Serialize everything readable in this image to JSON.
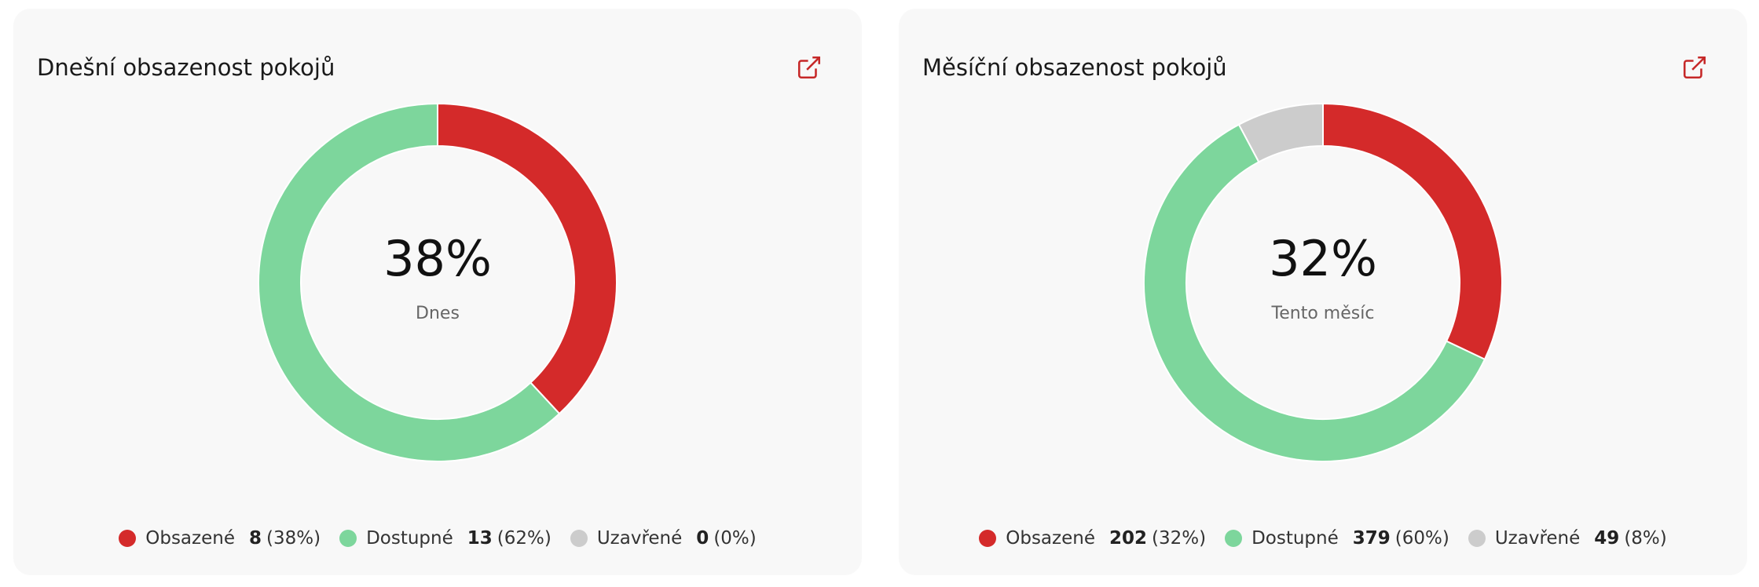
{
  "chart_data": [
    {
      "type": "donut",
      "title": "Dnešní obsazenost pokojů",
      "center_text": "38%",
      "center_subtitle": "Dnes",
      "categories": [
        "Obsazené",
        "Dostupné",
        "Uzavřené"
      ],
      "values": [
        8,
        13,
        0
      ],
      "shares": [
        38,
        62,
        0
      ],
      "share_labels": [
        "(38%)",
        "(62%)",
        "(0%)"
      ],
      "colors": [
        "#d42a2a",
        "#7dd69c",
        "#cccccc"
      ]
    },
    {
      "type": "donut",
      "title": "Měsíční obsazenost pokojů",
      "center_text": "32%",
      "center_subtitle": "Tento měsíc",
      "categories": [
        "Obsazené",
        "Dostupné",
        "Uzavřené"
      ],
      "values": [
        202,
        379,
        49
      ],
      "shares": [
        32,
        60,
        8
      ],
      "share_labels": [
        "(32%)",
        "(60%)",
        "(8%)"
      ],
      "colors": [
        "#d42a2a",
        "#7dd69c",
        "#cccccc"
      ]
    }
  ]
}
